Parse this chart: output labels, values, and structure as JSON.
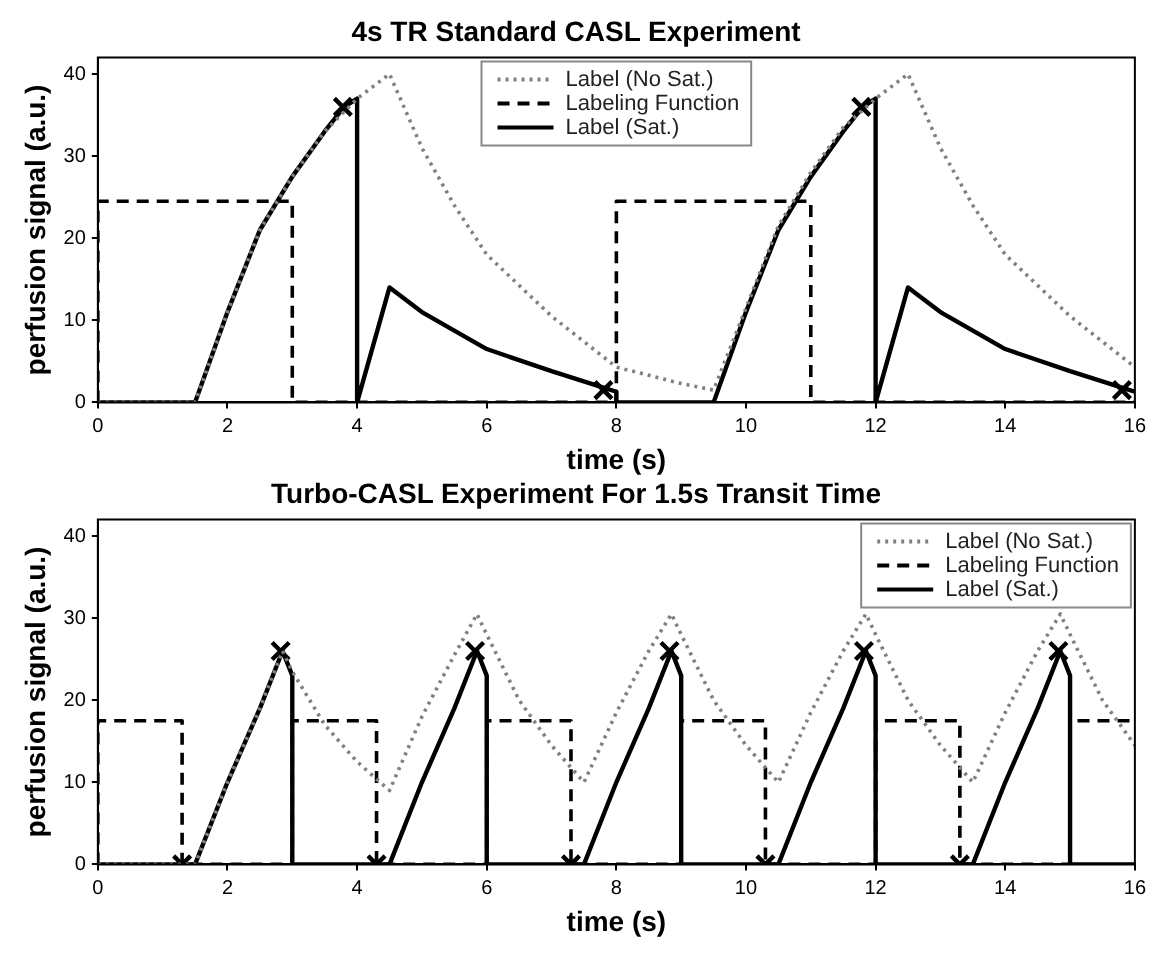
{
  "chart_data": [
    {
      "type": "line",
      "title": "4s TR Standard CASL Experiment",
      "xlabel": "time (s)",
      "ylabel": "perfusion signal (a.u.)",
      "xlim": [
        0,
        16
      ],
      "xticks": [
        0,
        2,
        4,
        6,
        8,
        10,
        12,
        14,
        16
      ],
      "ylim": [
        0,
        42
      ],
      "yticks": [
        0,
        10,
        20,
        30,
        40
      ],
      "legend": "top",
      "series": [
        {
          "name": "Label (No Sat.)",
          "color": "#808080",
          "line_style": "dotted",
          "x": [
            0,
            1.5,
            2,
            2.5,
            3,
            3.5,
            4,
            4.5,
            5,
            5.5,
            6,
            7,
            8,
            9,
            9.5,
            10,
            10.5,
            11,
            11.5,
            12,
            12.5,
            13,
            13.5,
            14,
            15,
            16
          ],
          "values": [
            0,
            0,
            11,
            21,
            27.5,
            33,
            37,
            40,
            31,
            24,
            18,
            10.5,
            4.3,
            2.3,
            1.5,
            11.5,
            21.5,
            28,
            33.5,
            37,
            40,
            31,
            24,
            18,
            10.5,
            4.3
          ]
        },
        {
          "name": "Labeling Function",
          "color": "#000000",
          "line_style": "dashed",
          "x": [
            0,
            0,
            3,
            3,
            8,
            8,
            11,
            11,
            16
          ],
          "values": [
            0,
            24.5,
            24.5,
            0,
            0,
            24.5,
            24.5,
            0,
            0
          ]
        },
        {
          "name": "Label (Sat.)",
          "color": "#000000",
          "line_style": "solid",
          "x": [
            0,
            1.5,
            2,
            2.5,
            3,
            3.5,
            3.8,
            4,
            4,
            4.5,
            5,
            6,
            7,
            7.8,
            8,
            8,
            9.5,
            10,
            10.5,
            11,
            11.5,
            11.8,
            12,
            12,
            12.5,
            13,
            14,
            15,
            15.8,
            16
          ],
          "values": [
            0,
            0,
            11,
            21,
            27.5,
            33,
            36,
            37,
            0,
            14,
            11,
            6.5,
            3.8,
            1.8,
            1.3,
            0,
            0,
            11,
            21,
            27.5,
            33,
            36,
            37,
            0,
            14,
            11,
            6.5,
            3.8,
            1.8,
            1.3
          ]
        },
        {
          "type": "scatter",
          "color": "#000000",
          "marker": "cross",
          "x": [
            3.78,
            7.8,
            11.78,
            15.8
          ],
          "values": [
            36,
            1.5,
            36,
            1.5
          ]
        }
      ]
    },
    {
      "type": "line",
      "title": "Turbo-CASL Experiment For 1.5s Transit Time",
      "xlabel": "time (s)",
      "ylabel": "perfusion signal (a.u.)",
      "xlim": [
        0,
        16
      ],
      "xticks": [
        0,
        2,
        4,
        6,
        8,
        10,
        12,
        14,
        16
      ],
      "ylim": [
        0,
        42
      ],
      "yticks": [
        0,
        10,
        20,
        30,
        40
      ],
      "legend": "top right",
      "series": [
        {
          "name": "Label (No Sat.)",
          "color": "#808080",
          "line_style": "dotted",
          "x": [
            0,
            1.5,
            2,
            2.5,
            2.85,
            3,
            3.5,
            4,
            4.5,
            5,
            5.5,
            5.85,
            6,
            6.5,
            7,
            7.5,
            8,
            8.5,
            8.85,
            9,
            9.5,
            10,
            10.5,
            11,
            11.5,
            11.85,
            12,
            12.5,
            13,
            13.5,
            14,
            14.5,
            14.85,
            15,
            15.5,
            16
          ],
          "values": [
            0,
            0,
            10,
            19,
            26,
            23.5,
            17,
            12.5,
            9,
            18,
            25.5,
            30.5,
            28,
            20,
            14.5,
            10,
            18.5,
            26,
            30.5,
            28,
            20,
            14.5,
            10,
            18.5,
            26,
            30.5,
            28,
            20,
            14.5,
            10,
            18.5,
            26,
            30.5,
            28,
            20,
            14.5
          ]
        },
        {
          "name": "Labeling Function",
          "color": "#000000",
          "line_style": "dashed",
          "x": [
            0,
            0,
            1.3,
            1.3,
            3,
            3,
            4.3,
            4.3,
            6,
            6,
            7.3,
            7.3,
            9,
            9,
            10.3,
            10.3,
            12,
            12,
            13.3,
            13.3,
            15,
            15,
            16
          ],
          "values": [
            0,
            17.5,
            17.5,
            0,
            0,
            17.5,
            17.5,
            0,
            0,
            17.5,
            17.5,
            0,
            0,
            17.5,
            17.5,
            0,
            0,
            17.5,
            17.5,
            0,
            0,
            17.5,
            17.5
          ]
        },
        {
          "name": "Label (Sat.)",
          "color": "#000000",
          "line_style": "solid",
          "x": [
            0,
            1.5,
            2,
            2.5,
            2.85,
            3,
            3,
            4.5,
            5,
            5.5,
            5.85,
            6,
            6,
            7.5,
            8,
            8.5,
            8.85,
            9,
            9,
            10.5,
            11,
            11.5,
            11.85,
            12,
            12,
            13.5,
            14,
            14.5,
            14.85,
            15,
            15,
            16
          ],
          "values": [
            0,
            0,
            10,
            19,
            26,
            23,
            0,
            0,
            10,
            19,
            26,
            23,
            0,
            0,
            10,
            19,
            26,
            23,
            0,
            0,
            10,
            19,
            26,
            23,
            0,
            0,
            10,
            19,
            26,
            23,
            0,
            0
          ]
        },
        {
          "type": "scatter",
          "color": "#000000",
          "marker": "cross",
          "x": [
            1.3,
            2.82,
            4.3,
            5.82,
            7.3,
            8.82,
            10.3,
            11.82,
            13.3,
            14.82
          ],
          "values": [
            0,
            26,
            0,
            26,
            0,
            26,
            0,
            26,
            0,
            26
          ]
        }
      ]
    }
  ]
}
